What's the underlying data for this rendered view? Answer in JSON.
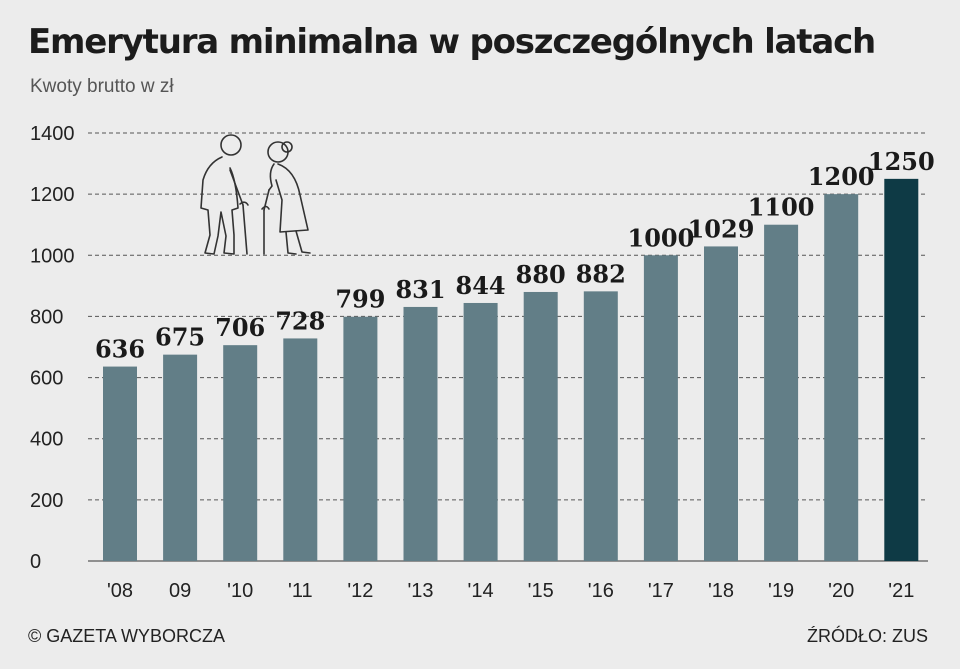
{
  "header": {
    "title": "Emerytura minimalna w poszczególnych latach",
    "subtitle": "Kwoty brutto w zł"
  },
  "footer": {
    "copyright": "© GAZETA WYBORCZA",
    "source": "ŹRÓDŁO: ZUS"
  },
  "colors": {
    "bar": "#627e87",
    "highlight": "#0e3a45",
    "grid": "#555555",
    "background": "#ececec"
  },
  "decor": {
    "icon": "elderly-couple-icon"
  },
  "chart_data": {
    "type": "bar",
    "title": "Emerytura minimalna w poszczególnych latach",
    "subtitle": "Kwoty brutto w zł",
    "categories": [
      "'08",
      "09",
      "'10",
      "'11",
      "'12",
      "'13",
      "'14",
      "'15",
      "'16",
      "'17",
      "'18",
      "'19",
      "'20",
      "'21"
    ],
    "values": [
      636,
      675,
      706,
      728,
      799,
      831,
      844,
      880,
      882,
      1000,
      1029,
      1100,
      1200,
      1250
    ],
    "value_labels": [
      "636",
      "675",
      "706",
      "728",
      "799",
      "831",
      "844",
      "880",
      "882",
      "1000",
      "1029",
      "1100",
      "1200",
      "1250"
    ],
    "highlight_index": 13,
    "yticks": [
      0,
      200,
      400,
      600,
      800,
      1000,
      1200,
      1400
    ],
    "ylim": [
      0,
      1400
    ],
    "grid": "horizontal dashed",
    "legend": "none"
  }
}
